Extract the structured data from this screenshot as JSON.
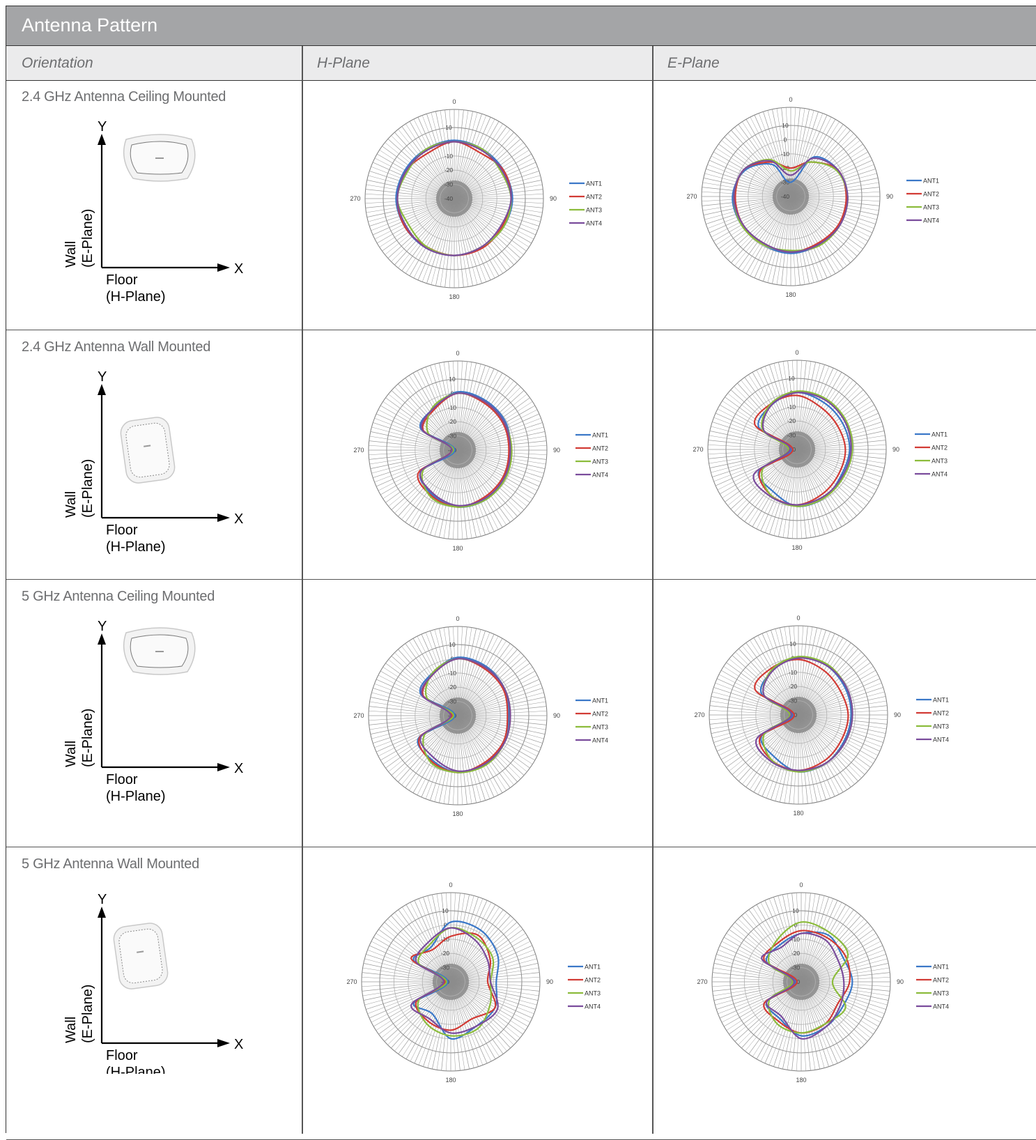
{
  "title": "Antenna Pattern",
  "headers": {
    "orientation": "Orientation",
    "h_plane": "H-Plane",
    "e_plane": "E-Plane"
  },
  "axis_labels": {
    "y": "Y",
    "x": "X",
    "wall": "Wall",
    "e_plane": "(E-Plane)",
    "floor": "Floor",
    "h_plane": "(H-Plane)"
  },
  "rows": [
    {
      "title": "2.4 GHz Antenna Ceiling Mounted",
      "mount": "ceiling"
    },
    {
      "title": "2.4 GHz Antenna Wall Mounted",
      "mount": "wall"
    },
    {
      "title": "5 GHz Antenna Ceiling Mounted",
      "mount": "ceiling"
    },
    {
      "title": "5 GHz Antenna Wall Mounted",
      "mount": "wall"
    }
  ],
  "colors": {
    "ANT1": "#3b78c8",
    "ANT2": "#d23b35",
    "ANT3": "#8cbc3c",
    "ANT4": "#7a4c9c"
  },
  "chart_data": [
    {
      "type": "polar-line",
      "row": 0,
      "plane": "H-Plane",
      "radial_ticks": [
        "10",
        "0",
        "-10",
        "-20",
        "-30",
        "-40"
      ],
      "rlim": [
        -40,
        10
      ],
      "angle_labels": [
        "0",
        "90",
        "180",
        "270"
      ],
      "legend": [
        "ANT1",
        "ANT2",
        "ANT3",
        "ANT4"
      ],
      "legend_position": "right",
      "angles": [
        0,
        30,
        60,
        90,
        120,
        150,
        180,
        210,
        240,
        270,
        300,
        330
      ],
      "series": [
        {
          "name": "ANT1",
          "values": [
            1,
            0,
            0,
            1,
            0,
            -1,
            0,
            0,
            0,
            1,
            0,
            0
          ]
        },
        {
          "name": "ANT2",
          "values": [
            0,
            -3,
            0,
            0,
            -1,
            0,
            0,
            -1,
            0,
            0,
            -1,
            -3
          ]
        },
        {
          "name": "ANT3",
          "values": [
            0,
            0,
            -2,
            0,
            0,
            -1,
            0,
            -1,
            -3,
            0,
            -2,
            0
          ]
        },
        {
          "name": "ANT4",
          "values": [
            0,
            -1,
            -1,
            0,
            -2,
            -1,
            0,
            0,
            -1,
            0,
            -1,
            -1
          ]
        }
      ]
    },
    {
      "type": "polar-line",
      "row": 0,
      "plane": "E-Plane",
      "radial_ticks": [
        "10",
        "0",
        "-10",
        "-20",
        "-30",
        "-40"
      ],
      "rlim": [
        -40,
        10
      ],
      "angle_labels": [
        "0",
        "90",
        "180",
        "270"
      ],
      "legend": [
        "ANT1",
        "ANT2",
        "ANT3",
        "ANT4"
      ],
      "legend_position": "right",
      "angles": [
        0,
        30,
        60,
        90,
        120,
        150,
        180,
        210,
        240,
        270,
        300,
        330
      ],
      "series": [
        {
          "name": "ANT1",
          "values": [
            -30,
            -8,
            -2,
            0,
            0,
            -1,
            0,
            -1,
            0,
            1,
            -3,
            -14
          ]
        },
        {
          "name": "ANT2",
          "values": [
            -20,
            -12,
            -2,
            -1,
            -1,
            -2,
            -1,
            -2,
            -1,
            -1,
            -2,
            -12
          ]
        },
        {
          "name": "ANT3",
          "values": [
            -22,
            -12,
            -3,
            0,
            0,
            0,
            -2,
            -1,
            0,
            0,
            -2,
            -10
          ]
        },
        {
          "name": "ANT4",
          "values": [
            -25,
            -9,
            -2,
            0,
            0,
            -1,
            -1,
            -2,
            -1,
            0,
            -2,
            -11
          ]
        }
      ]
    },
    {
      "type": "polar-line",
      "row": 1,
      "plane": "H-Plane",
      "radial_ticks": [
        "10",
        "0",
        "-10",
        "-20",
        "-30",
        "-40"
      ],
      "rlim": [
        -40,
        10
      ],
      "angle_labels": [
        "0",
        "90",
        "180",
        "270"
      ],
      "legend": [
        "ANT1",
        "ANT2",
        "ANT3",
        "ANT4"
      ],
      "legend_position": "right",
      "angles": [
        0,
        30,
        60,
        90,
        120,
        150,
        180,
        210,
        240,
        270,
        300,
        330
      ],
      "series": [
        {
          "name": "ANT1",
          "values": [
            1,
            0,
            -1,
            -3,
            -2,
            0,
            0,
            -4,
            -10,
            -38,
            -10,
            -6
          ]
        },
        {
          "name": "ANT2",
          "values": [
            0,
            -2,
            -3,
            -4,
            -3,
            -2,
            0,
            -3,
            -8,
            -36,
            -12,
            -7
          ]
        },
        {
          "name": "ANT3",
          "values": [
            0,
            -1,
            -2,
            -2,
            -1,
            0,
            0,
            -2,
            -12,
            -37,
            -16,
            -5
          ]
        },
        {
          "name": "ANT4",
          "values": [
            0,
            -1,
            -2,
            -3,
            -2,
            -1,
            -1,
            -5,
            -10,
            -36,
            -11,
            -6
          ]
        }
      ]
    },
    {
      "type": "polar-line",
      "row": 1,
      "plane": "E-Plane",
      "radial_ticks": [
        "10",
        "0",
        "-10",
        "-20",
        "-30",
        "-40"
      ],
      "rlim": [
        -40,
        10
      ],
      "angle_labels": [
        "0",
        "90",
        "180",
        "270"
      ],
      "legend": [
        "ANT1",
        "ANT2",
        "ANT3",
        "ANT4"
      ],
      "legend_position": "right",
      "angles": [
        0,
        30,
        60,
        90,
        120,
        150,
        180,
        210,
        240,
        270,
        300,
        330
      ],
      "series": [
        {
          "name": "ANT1",
          "values": [
            0,
            -2,
            -3,
            -3,
            -4,
            -1,
            0,
            -6,
            -9,
            -36,
            -9,
            -4
          ]
        },
        {
          "name": "ANT2",
          "values": [
            -2,
            -6,
            -7,
            -6,
            -6,
            -4,
            -1,
            -3,
            -10,
            -37,
            -6,
            -3
          ]
        },
        {
          "name": "ANT3",
          "values": [
            1,
            1,
            0,
            -1,
            -2,
            -1,
            0,
            -3,
            -12,
            -34,
            -12,
            -3
          ]
        },
        {
          "name": "ANT4",
          "values": [
            0,
            0,
            -1,
            -2,
            -3,
            -2,
            -1,
            -2,
            -5,
            -35,
            -13,
            -4
          ]
        }
      ]
    },
    {
      "type": "polar-line",
      "row": 2,
      "plane": "H-Plane",
      "radial_ticks": [
        "10",
        "0",
        "-10",
        "-20",
        "-30",
        "-40"
      ],
      "rlim": [
        -40,
        10
      ],
      "angle_labels": [
        "0",
        "90",
        "180",
        "270"
      ],
      "legend": [
        "ANT1",
        "ANT2",
        "ANT3",
        "ANT4"
      ],
      "legend_position": "right",
      "angles": [
        0,
        30,
        60,
        90,
        120,
        150,
        180,
        210,
        240,
        270,
        300,
        330
      ],
      "series": [
        {
          "name": "ANT1",
          "values": [
            1,
            0,
            -2,
            -4,
            -3,
            -1,
            0,
            -4,
            -8,
            -38,
            -10,
            -5
          ]
        },
        {
          "name": "ANT2",
          "values": [
            0,
            -2,
            -3,
            -5,
            -3,
            -2,
            0,
            -3,
            -9,
            -36,
            -12,
            -6
          ]
        },
        {
          "name": "ANT3",
          "values": [
            0,
            -1,
            -2,
            -3,
            -2,
            0,
            0,
            -2,
            -13,
            -37,
            -15,
            -5
          ]
        },
        {
          "name": "ANT4",
          "values": [
            0,
            -1,
            -2,
            -3,
            -2,
            -1,
            -1,
            -6,
            -10,
            -35,
            -11,
            -6
          ]
        }
      ]
    },
    {
      "type": "polar-line",
      "row": 2,
      "plane": "E-Plane",
      "radial_ticks": [
        "10",
        "0",
        "-10",
        "-20",
        "-30",
        "-40"
      ],
      "rlim": [
        -40,
        10
      ],
      "angle_labels": [
        "0",
        "90",
        "180",
        "270"
      ],
      "legend": [
        "ANT1",
        "ANT2",
        "ANT3",
        "ANT4"
      ],
      "legend_position": "right",
      "angles": [
        0,
        30,
        60,
        90,
        120,
        150,
        180,
        210,
        240,
        270,
        300,
        330
      ],
      "series": [
        {
          "name": "ANT1",
          "values": [
            1,
            0,
            -2,
            -3,
            -3,
            -1,
            0,
            -6,
            -10,
            -36,
            -10,
            -4
          ]
        },
        {
          "name": "ANT2",
          "values": [
            -1,
            -4,
            -6,
            -5,
            -5,
            -3,
            -1,
            -3,
            -9,
            -37,
            -5,
            -2
          ]
        },
        {
          "name": "ANT3",
          "values": [
            1,
            1,
            -1,
            -2,
            -2,
            -1,
            0,
            -3,
            -12,
            -34,
            -12,
            -3
          ]
        },
        {
          "name": "ANT4",
          "values": [
            0,
            0,
            -1,
            -2,
            -2,
            -1,
            -1,
            -2,
            -6,
            -35,
            -12,
            -4
          ]
        }
      ]
    },
    {
      "type": "polar-line",
      "row": 3,
      "plane": "H-Plane",
      "radial_ticks": [
        "10",
        "0",
        "-10",
        "-20",
        "-30",
        "-40"
      ],
      "rlim": [
        -40,
        10
      ],
      "angle_labels": [
        "0",
        "90",
        "180",
        "270"
      ],
      "legend": [
        "ANT1",
        "ANT2",
        "ANT3",
        "ANT4"
      ],
      "legend_position": "right",
      "angles": [
        0,
        30,
        60,
        90,
        120,
        150,
        180,
        210,
        240,
        270,
        300,
        330
      ],
      "series": [
        {
          "name": "ANT1",
          "values": [
            2,
            2,
            -2,
            -8,
            -4,
            -4,
            0,
            -14,
            -10,
            -38,
            -10,
            -12
          ]
        },
        {
          "name": "ANT2",
          "values": [
            -8,
            -2,
            -8,
            -14,
            -4,
            -10,
            -6,
            -8,
            -12,
            -36,
            -8,
            -14
          ]
        },
        {
          "name": "ANT3",
          "values": [
            -2,
            -4,
            -6,
            -12,
            -8,
            -2,
            -2,
            -6,
            -14,
            -37,
            -14,
            -10
          ]
        },
        {
          "name": "ANT4",
          "values": [
            -2,
            -6,
            -10,
            -12,
            -2,
            -4,
            -4,
            -10,
            -8,
            -35,
            -12,
            -8
          ]
        }
      ]
    },
    {
      "type": "polar-line",
      "row": 3,
      "plane": "E-Plane",
      "radial_ticks": [
        "10",
        "0",
        "-10",
        "-20",
        "-30",
        "-40"
      ],
      "rlim": [
        -40,
        10
      ],
      "angle_labels": [
        "0",
        "90",
        "180",
        "270"
      ],
      "legend": [
        "ANT1",
        "ANT2",
        "ANT3",
        "ANT4"
      ],
      "legend_position": "right",
      "angles": [
        0,
        30,
        60,
        90,
        120,
        150,
        180,
        210,
        240,
        270,
        300,
        330
      ],
      "series": [
        {
          "name": "ANT1",
          "values": [
            -6,
            -2,
            -6,
            -4,
            -6,
            -4,
            -2,
            -10,
            -12,
            -36,
            -12,
            -10
          ]
        },
        {
          "name": "ANT2",
          "values": [
            -4,
            -4,
            -4,
            -6,
            -10,
            -6,
            -4,
            -8,
            -10,
            -37,
            -10,
            -8
          ]
        },
        {
          "name": "ANT3",
          "values": [
            2,
            0,
            -2,
            -18,
            -4,
            -6,
            -4,
            -6,
            -14,
            -34,
            -14,
            -6
          ]
        },
        {
          "name": "ANT4",
          "values": [
            -6,
            -6,
            -10,
            -10,
            -8,
            -4,
            0,
            -12,
            -12,
            -35,
            -8,
            -12
          ]
        }
      ]
    }
  ]
}
